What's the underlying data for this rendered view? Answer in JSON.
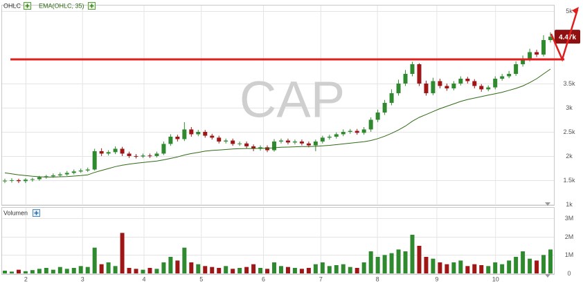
{
  "chart_data": {
    "type": "candlestick",
    "watermark": "CAP",
    "grid": true,
    "xlim": [
      0,
      80
    ],
    "xticks": [
      {
        "value": 3.5,
        "label": "2"
      },
      {
        "value": 11.7,
        "label": "3"
      },
      {
        "value": 20.6,
        "label": "4"
      },
      {
        "value": 28.9,
        "label": "5"
      },
      {
        "value": 37.9,
        "label": "6"
      },
      {
        "value": 46.2,
        "label": "7"
      },
      {
        "value": 54.4,
        "label": "8"
      },
      {
        "value": 63.0,
        "label": "9"
      },
      {
        "value": 71.5,
        "label": "10"
      }
    ],
    "ylim": [
      970,
      5115
    ],
    "yticks": [
      {
        "value": 1000,
        "label": "1k"
      },
      {
        "value": 1500,
        "label": "1.5k"
      },
      {
        "value": 2000,
        "label": "2k"
      },
      {
        "value": 2500,
        "label": "2.5k"
      },
      {
        "value": 3000,
        "label": "3k"
      },
      {
        "value": 3500,
        "label": "3.5k"
      },
      {
        "value": 5000,
        "label": "5k"
      }
    ],
    "ohlc": {
      "name": "OHLC",
      "up_color": "#2f8a2f",
      "down_color": "#9e1616",
      "open": [
        1480,
        1490,
        1500,
        1480,
        1510,
        1520,
        1560,
        1580,
        1600,
        1620,
        1650,
        1680,
        1700,
        1720,
        2100,
        2050,
        2080,
        2150,
        2050,
        2000,
        1990,
        2010,
        2000,
        2050,
        2250,
        2400,
        2350,
        2550,
        2450,
        2500,
        2420,
        2380,
        2300,
        2320,
        2250,
        2260,
        2200,
        2150,
        2180,
        2120,
        2300,
        2320,
        2280,
        2300,
        2260,
        2220,
        2300,
        2380,
        2400,
        2450,
        2500,
        2520,
        2480,
        2550,
        2750,
        2900,
        3100,
        3300,
        3500,
        3700,
        3900,
        3500,
        3300,
        3550,
        3450,
        3400,
        3500,
        3600,
        3550,
        3450,
        3380,
        3420,
        3600,
        3650,
        3700,
        3900,
        4000,
        4150,
        4100,
        4400
      ],
      "high": [
        1530,
        1540,
        1530,
        1540,
        1550,
        1590,
        1610,
        1640,
        1660,
        1690,
        1720,
        1740,
        1760,
        2150,
        2160,
        2120,
        2200,
        2190,
        2090,
        2040,
        2050,
        2050,
        2090,
        2300,
        2450,
        2440,
        2700,
        2600,
        2540,
        2540,
        2460,
        2420,
        2360,
        2360,
        2300,
        2300,
        2240,
        2220,
        2220,
        2350,
        2360,
        2360,
        2340,
        2340,
        2300,
        2340,
        2420,
        2440,
        2490,
        2550,
        2560,
        2560,
        2600,
        2800,
        2960,
        3160,
        3380,
        3580,
        3780,
        3950,
        3920,
        3560,
        3620,
        3600,
        3500,
        3550,
        3650,
        3640,
        3590,
        3490,
        3460,
        3650,
        3700,
        3760,
        3960,
        4080,
        4220,
        4200,
        4500,
        4560
      ],
      "low": [
        1440,
        1450,
        1440,
        1440,
        1470,
        1490,
        1530,
        1550,
        1570,
        1590,
        1620,
        1650,
        1670,
        1700,
        2000,
        2010,
        2040,
        2000,
        1960,
        1950,
        1960,
        1960,
        1970,
        2020,
        2210,
        2300,
        2310,
        2400,
        2410,
        2380,
        2340,
        2260,
        2260,
        2210,
        2210,
        2160,
        2100,
        2110,
        2080,
        2090,
        2260,
        2240,
        2240,
        2220,
        2180,
        2100,
        2260,
        2340,
        2360,
        2410,
        2460,
        2440,
        2440,
        2500,
        2700,
        2850,
        3050,
        3250,
        3450,
        3650,
        3450,
        3250,
        3260,
        3400,
        3350,
        3360,
        3460,
        3500,
        3400,
        3330,
        3340,
        3380,
        3560,
        3610,
        3660,
        3850,
        3960,
        4050,
        4060,
        4350
      ],
      "close": [
        1490,
        1500,
        1480,
        1510,
        1520,
        1560,
        1580,
        1600,
        1620,
        1650,
        1680,
        1700,
        1720,
        2100,
        2050,
        2080,
        2150,
        2050,
        2000,
        1990,
        2010,
        2000,
        2050,
        2250,
        2400,
        2350,
        2550,
        2450,
        2500,
        2420,
        2380,
        2300,
        2320,
        2250,
        2260,
        2200,
        2150,
        2180,
        2120,
        2300,
        2320,
        2280,
        2300,
        2260,
        2220,
        2300,
        2380,
        2400,
        2450,
        2500,
        2520,
        2480,
        2550,
        2750,
        2900,
        3100,
        3300,
        3500,
        3700,
        3900,
        3500,
        3300,
        3550,
        3450,
        3400,
        3500,
        3600,
        3550,
        3450,
        3380,
        3420,
        3600,
        3650,
        3700,
        3900,
        4000,
        4150,
        4100,
        4400,
        4470
      ]
    },
    "ema": {
      "name": "EMA(OHLC, 35)",
      "color": "#2d6a12",
      "values": [
        1650,
        1630,
        1610,
        1595,
        1580,
        1570,
        1565,
        1565,
        1570,
        1575,
        1585,
        1595,
        1610,
        1660,
        1700,
        1740,
        1780,
        1810,
        1830,
        1850,
        1865,
        1880,
        1895,
        1920,
        1950,
        1980,
        2020,
        2050,
        2075,
        2100,
        2115,
        2125,
        2135,
        2145,
        2150,
        2155,
        2155,
        2160,
        2160,
        2170,
        2180,
        2185,
        2190,
        2195,
        2195,
        2200,
        2210,
        2220,
        2235,
        2250,
        2265,
        2280,
        2295,
        2320,
        2360,
        2410,
        2470,
        2540,
        2620,
        2720,
        2800,
        2860,
        2920,
        2980,
        3030,
        3080,
        3130,
        3170,
        3200,
        3230,
        3260,
        3290,
        3320,
        3360,
        3400,
        3450,
        3520,
        3600,
        3700,
        3800
      ]
    },
    "level_line": {
      "value": 4000,
      "color": "#e01e1e"
    },
    "last_price_label": {
      "value": 4470,
      "label": "4.47k",
      "color": "#8e1010"
    },
    "volume": {
      "name": "Volumen",
      "ylim": [
        0,
        3600000
      ],
      "yticks": [
        0,
        {
          "value": 1000000,
          "label": "1M"
        },
        {
          "value": 2000000,
          "label": "2M"
        },
        {
          "value": 3000000,
          "label": "3M"
        }
      ],
      "values": [
        150000,
        100000,
        200000,
        120000,
        180000,
        250000,
        300000,
        200000,
        350000,
        250000,
        300000,
        400000,
        350000,
        1400000,
        500000,
        600000,
        400000,
        2200000,
        300000,
        250000,
        200000,
        300000,
        250000,
        600000,
        900000,
        700000,
        1400000,
        600000,
        500000,
        400000,
        350000,
        300000,
        400000,
        250000,
        300000,
        350000,
        500000,
        300000,
        250000,
        600000,
        400000,
        350000,
        300000,
        250000,
        300000,
        500000,
        600000,
        400000,
        450000,
        500000,
        350000,
        300000,
        600000,
        1200000,
        900000,
        1000000,
        1100000,
        1300000,
        1200000,
        2100000,
        1500000,
        900000,
        800000,
        600000,
        500000,
        600000,
        700000,
        400000,
        500000,
        450000,
        400000,
        600000,
        500000,
        700000,
        900000,
        1200000,
        800000,
        700000,
        1000000,
        1300000
      ]
    }
  }
}
